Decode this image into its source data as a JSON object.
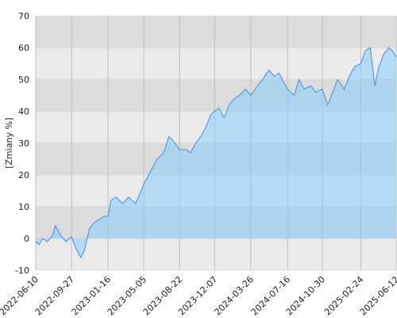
{
  "chart_data": {
    "type": "area",
    "y_label": "[Zmiany %]",
    "x": [
      "2022-06-10",
      "2022-06-20",
      "2022-07-01",
      "2022-07-15",
      "2022-08-01",
      "2022-08-09",
      "2022-08-25",
      "2022-09-10",
      "2022-09-27",
      "2022-10-10",
      "2022-10-25",
      "2022-11-05",
      "2022-11-20",
      "2022-12-05",
      "2022-12-20",
      "2023-01-05",
      "2023-01-16",
      "2023-01-25",
      "2023-02-10",
      "2023-03-01",
      "2023-03-20",
      "2023-04-10",
      "2023-05-05",
      "2023-05-25",
      "2023-06-15",
      "2023-07-05",
      "2023-07-20",
      "2023-08-01",
      "2023-08-22",
      "2023-09-10",
      "2023-09-25",
      "2023-10-10",
      "2023-10-25",
      "2023-11-10",
      "2023-11-25",
      "2023-12-07",
      "2023-12-20",
      "2024-01-05",
      "2024-01-20",
      "2024-02-05",
      "2024-02-20",
      "2024-03-10",
      "2024-03-26",
      "2024-04-15",
      "2024-05-01",
      "2024-05-20",
      "2024-06-05",
      "2024-06-20",
      "2024-07-05",
      "2024-07-16",
      "2024-08-05",
      "2024-08-20",
      "2024-09-05",
      "2024-09-25",
      "2024-10-10",
      "2024-10-30",
      "2024-11-15",
      "2024-12-01",
      "2024-12-15",
      "2025-01-05",
      "2025-01-20",
      "2025-02-05",
      "2025-02-24",
      "2025-03-10",
      "2025-03-25",
      "2025-04-08",
      "2025-04-20",
      "2025-05-05",
      "2025-05-20",
      "2025-06-01",
      "2025-06-12"
    ],
    "series": [
      {
        "name": "Zmiany",
        "color": "#3d8fe8",
        "values": [
          -1,
          -2,
          0,
          -1,
          1,
          4,
          1,
          -1,
          0.5,
          -3,
          -6,
          -4,
          3,
          5,
          6,
          7,
          7,
          12,
          13,
          11,
          13,
          11,
          17,
          21,
          25,
          27,
          32,
          31,
          28,
          28,
          27,
          30,
          32,
          35,
          39,
          40,
          41,
          38,
          42,
          44,
          45,
          47,
          45,
          48,
          50,
          53,
          51,
          52,
          49,
          47,
          45,
          50,
          47,
          48,
          46,
          47,
          42,
          46,
          50,
          47,
          51,
          54,
          55,
          59,
          60,
          48,
          54,
          58,
          60,
          59,
          57
        ]
      }
    ],
    "xlim": [
      "2022-06-10",
      "2025-06-12"
    ],
    "xticks": [
      "2022-06-10",
      "2022-09-27",
      "2023-01-16",
      "2023-05-05",
      "2023-08-22",
      "2023-12-07",
      "2024-03-26",
      "2024-07-16",
      "2024-10-30",
      "2025-02-24",
      "2025-06-12"
    ],
    "ylim": [
      -10,
      70
    ],
    "yticks": [
      -10,
      0,
      10,
      20,
      30,
      40,
      50,
      60,
      70
    ],
    "grid": true
  }
}
